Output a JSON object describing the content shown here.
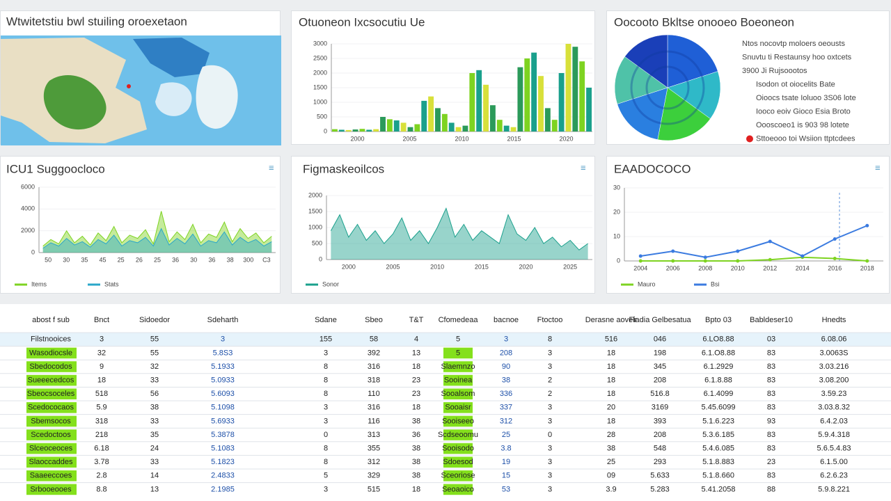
{
  "map": {
    "title": "Wtwitetstiu bwl stuiling oroexetaon"
  },
  "bar_chart": {
    "type": "bar",
    "title": "Otuoneon Ixcsocutiu Ue",
    "values": [
      80,
      60,
      50,
      70,
      90,
      60,
      80,
      500,
      420,
      380,
      300,
      150,
      250,
      1050,
      1200,
      800,
      600,
      300,
      150,
      200,
      2000,
      2100,
      1600,
      900,
      400,
      200,
      150,
      2200,
      2500,
      2700,
      1900,
      800,
      400,
      2000,
      3000,
      2900,
      2400,
      1500
    ],
    "colors": [
      "#7ed321",
      "#1aa08c",
      "#d8e03a",
      "#2b9a5a"
    ],
    "ylim": [
      0,
      3000
    ],
    "yticks": [
      0,
      500,
      1000,
      1500,
      2000,
      2500,
      3000
    ],
    "x_labels": [
      "2000",
      "2005",
      "2010",
      "2015",
      "2020"
    ]
  },
  "pie_chart": {
    "type": "pie",
    "title": "Oocooto Bkltse onooeo Boeoneon",
    "values": [
      20,
      15,
      18,
      17,
      15,
      15
    ],
    "colors": [
      "#1f5fd6",
      "#2fb9c8",
      "#3ccf3c",
      "#2a7fe0",
      "#4fc2a8",
      "#1a3fb8"
    ],
    "legend": [
      "Ntos nocovtp moloers oeousts",
      "Snuvtu ti Restaunsy hoo oxtcets",
      "3900 Ji Rujsoootos",
      "Isodon ot oiocelits Bate",
      "Oioocs tsate Ioluoo 3S06 lote",
      "Iooco eoiv Gioco Esia Broto",
      "Oooscoeo1 is 903 98 lotete",
      "Sttoeooo toi Wsiion ttptcdees"
    ],
    "legend_marker_color": "#e02020"
  },
  "line_charts": [
    {
      "type": "area",
      "title": "ICU1 Suggoocloco",
      "series": [
        {
          "name": "Items",
          "color": "#7ed321",
          "values": [
            600,
            1200,
            800,
            2000,
            900,
            1500,
            700,
            1800,
            1100,
            2400,
            900,
            1600,
            1300,
            2100,
            800,
            3800,
            1000,
            1900,
            1200,
            2600,
            900,
            1700,
            1400,
            2800,
            1000,
            2200,
            1300,
            1800,
            900,
            1500
          ]
        },
        {
          "name": "Stats",
          "color": "#2aa7c9",
          "values": [
            400,
            900,
            600,
            1300,
            700,
            1000,
            500,
            1200,
            800,
            1600,
            600,
            1100,
            900,
            1400,
            600,
            2200,
            700,
            1300,
            800,
            1700,
            600,
            1100,
            900,
            1900,
            700,
            1400,
            900,
            1200,
            600,
            1000
          ]
        }
      ],
      "ylim": [
        0,
        6000
      ],
      "yticks": [
        0,
        2000,
        4000,
        6000
      ],
      "x_labels": [
        "50",
        "30",
        "35",
        "45",
        "25",
        "26",
        "25",
        "36",
        "30",
        "36",
        "38",
        "300",
        "C3"
      ]
    },
    {
      "type": "area",
      "title": "Figmaskeoilcos",
      "series": [
        {
          "name": "Sonor",
          "color": "#1aa08c",
          "values": [
            900,
            1400,
            700,
            1100,
            600,
            900,
            500,
            800,
            1300,
            600,
            900,
            500,
            1000,
            1600,
            700,
            1100,
            600,
            900,
            700,
            500,
            1400,
            800,
            600,
            1000,
            500,
            700,
            400,
            600,
            300,
            500
          ]
        }
      ],
      "ylim": [
        0,
        2000
      ],
      "yticks": [
        0,
        500,
        1000,
        1500,
        2000
      ],
      "x_labels": [
        "2000",
        "2005",
        "2010",
        "2015",
        "2020",
        "2025"
      ]
    },
    {
      "type": "line",
      "title": "EAADOCOCO",
      "series": [
        {
          "name": "Mauro",
          "color": "#7ed321",
          "values": [
            0,
            0,
            0,
            0,
            0.5,
            1.5,
            1,
            0
          ]
        },
        {
          "name": "Bsi",
          "color": "#3b7be0",
          "values": [
            2,
            4,
            1.5,
            4,
            8,
            2,
            9,
            14.5
          ]
        }
      ],
      "ylim": [
        0,
        30
      ],
      "yticks": [
        0,
        10,
        20,
        30
      ],
      "x_labels": [
        "2004",
        "2006",
        "2008",
        "2010",
        "2012",
        "2014",
        "2016",
        "2018"
      ]
    }
  ],
  "table": {
    "highlight_color": "#84e01c",
    "headers": [
      "abost f sub",
      "Bnct",
      "Sidoedor",
      "Sdeharth",
      "Sdane",
      "Sbeo",
      "T&T",
      "Cfomedeaa",
      "bacnoe",
      "Ftoctoo",
      "Derasne aovelr",
      "Fiadia Gelbesatua",
      "Bpto 03",
      "Babldeser10",
      "Hnedts"
    ],
    "rows": [
      [
        "Filstnooices",
        "3",
        "55",
        "3",
        "155",
        "58",
        "4",
        "5",
        "3",
        "8",
        "516",
        "046",
        "6.LO8.88",
        "03",
        "6.08.06"
      ],
      [
        "Wasodiocsle",
        "32",
        "55",
        "5.8S3",
        "3",
        "392",
        "13",
        "5",
        "208",
        "3",
        "18",
        "198",
        "6.1.O8.88",
        "83",
        "3.0063S"
      ],
      [
        "Sbedocodos",
        "9",
        "32",
        "5.1933",
        "8",
        "316",
        "18",
        "Slaemnzo",
        "90",
        "3",
        "18",
        "345",
        "6.1.2929",
        "83",
        "3.03.216"
      ],
      [
        "Sueeecedcos",
        "18",
        "33",
        "5.0933",
        "8",
        "318",
        "23",
        "Sooinea",
        "38",
        "2",
        "18",
        "208",
        "6.1.8.88",
        "83",
        "3.08.200"
      ],
      [
        "Sbeocsoceles",
        "518",
        "56",
        "5.6093",
        "8",
        "110",
        "23",
        "Sooalsom",
        "336",
        "2",
        "18",
        "516.8",
        "6.1.4099",
        "83",
        "3.59.23"
      ],
      [
        "Scedococaos",
        "5.9",
        "38",
        "5.1098",
        "3",
        "316",
        "18",
        "Sooaisr",
        "337",
        "3",
        "20",
        "3169",
        "5.45.6099",
        "83",
        "3.03.8.32"
      ],
      [
        "Sbemsocos",
        "318",
        "33",
        "5.6933",
        "3",
        "116",
        "38",
        "Sooiseeo",
        "312",
        "3",
        "18",
        "393",
        "5.1.6.223",
        "93",
        "6.4.2.03"
      ],
      [
        "Scedoctoos",
        "218",
        "35",
        "5.3878",
        "0",
        "313",
        "36",
        "Scdseoomu",
        "25",
        "0",
        "28",
        "208",
        "5.3.6.185",
        "83",
        "5.9.4.318"
      ],
      [
        "Slceoceoces",
        "6.18",
        "24",
        "5.1083",
        "8",
        "355",
        "38",
        "Sooisodo",
        "3.8",
        "3",
        "38",
        "548",
        "5.4.6.085",
        "83",
        "5.6.5.4.83"
      ],
      [
        "Slaoccaddes",
        "3.78",
        "33",
        "5.1823",
        "8",
        "312",
        "38",
        "Sdoesod",
        "19",
        "3",
        "25",
        "293",
        "5.1.8.883",
        "23",
        "6.1.5.00"
      ],
      [
        "Saaeeccoes",
        "2.8",
        "14",
        "2.4833",
        "5",
        "329",
        "38",
        "Sceoriose",
        "15",
        "3",
        "09",
        "5.633",
        "5.1.8.660",
        "83",
        "6.2.6.23"
      ],
      [
        "Srbooeooes",
        "8.8",
        "13",
        "2.1985",
        "3",
        "515",
        "18",
        "Seoaoico",
        "53",
        "3",
        "3.9",
        "5.283",
        "5.41.2058",
        "88",
        "5.9.8.221"
      ]
    ]
  }
}
